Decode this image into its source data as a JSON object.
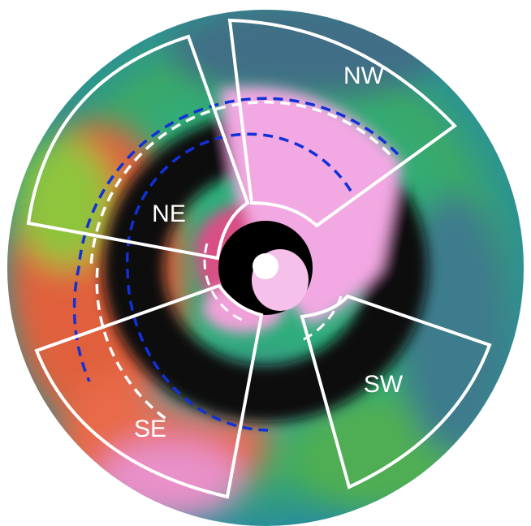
{
  "regions": [
    {
      "label": "NW"
    },
    {
      "label": "NE"
    },
    {
      "label": "SW"
    },
    {
      "label": "SE"
    }
  ]
}
